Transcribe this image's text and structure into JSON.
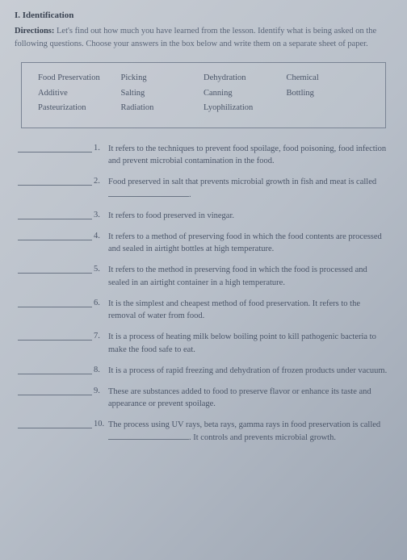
{
  "header": {
    "section_title": "I. Identification",
    "directions_label": "Directions:",
    "directions_text": "Let's find out how much you have learned from the lesson. Identify what is being asked on the following questions. Choose your answers in the box below and write them on a separate sheet of paper."
  },
  "answer_box": {
    "rows": [
      [
        "Food Preservation",
        "Picking",
        "Dehydration",
        "Chemical"
      ],
      [
        "Additive",
        "Salting",
        "Canning",
        "Bottling"
      ],
      [
        "Pasteurization",
        "Radiation",
        "Lyophilization",
        ""
      ]
    ]
  },
  "questions": [
    {
      "num": "1.",
      "text": "It refers to the techniques to prevent food spoilage, food poisoning, food infection and prevent microbial contamination in the food."
    },
    {
      "num": "2.",
      "text": "Food preserved in salt that prevents microbial growth in fish and meat is called",
      "trailing_blank": true,
      "after_blank": "."
    },
    {
      "num": "3.",
      "text": "It refers to food preserved in vinegar."
    },
    {
      "num": "4.",
      "text": "It refers to a method of preserving food in which the food contents are processed and sealed in airtight bottles at high temperature."
    },
    {
      "num": "5.",
      "text": "It refers to the method in preserving food in which the food is processed and sealed in an airtight container in a high temperature."
    },
    {
      "num": "6.",
      "text": "It is the simplest and cheapest method of food preservation. It refers to the removal of water from food."
    },
    {
      "num": "7.",
      "text": "It is a process of heating milk below boiling point to kill pathogenic bacteria to make the food safe to eat."
    },
    {
      "num": "8.",
      "text": "It is a process of rapid freezing and dehydration of frozen products under vacuum."
    },
    {
      "num": "9.",
      "text": "These are substances added to food to preserve flavor or enhance its taste and appearance or prevent spoilage."
    },
    {
      "num": "10.",
      "text": "The process using UV rays, beta rays, gamma rays in food preservation is called",
      "trailing_blank": true,
      "after_blank": ". It controls and prevents microbial growth."
    }
  ]
}
